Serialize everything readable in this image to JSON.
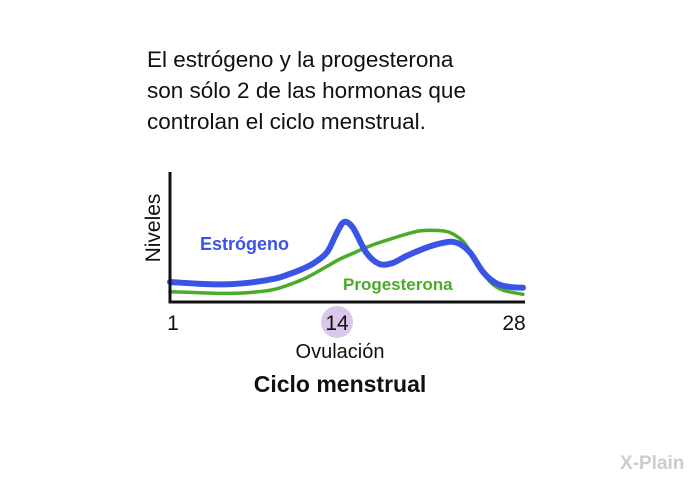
{
  "intro_lines": [
    "El estrógeno y la progesterona",
    "son sólo 2 de las hormonas que",
    "controlan el ciclo menstrual."
  ],
  "chart_data": {
    "type": "line",
    "title": "Ciclo menstrual",
    "xlabel": "Ovulación",
    "ylabel": "Niveles",
    "xlim": [
      1,
      28
    ],
    "ylim": [
      0,
      1
    ],
    "x_ticks": [
      "1",
      "14",
      "28"
    ],
    "highlight_tick": "14",
    "grid": false,
    "legend": "inline labels",
    "series": [
      {
        "name": "Estrógeno",
        "color": "#3a55e6",
        "x": [
          1,
          3,
          5,
          7,
          9,
          10,
          11,
          12,
          13,
          13.7,
          14.3,
          15,
          16,
          17,
          18,
          19,
          20,
          21,
          22,
          22.6,
          23.3,
          24,
          25,
          26,
          27,
          28
        ],
        "y": [
          0.22,
          0.2,
          0.19,
          0.21,
          0.26,
          0.31,
          0.37,
          0.45,
          0.58,
          0.8,
          0.95,
          0.88,
          0.58,
          0.44,
          0.45,
          0.53,
          0.6,
          0.66,
          0.7,
          0.71,
          0.67,
          0.57,
          0.33,
          0.2,
          0.16,
          0.15
        ]
      },
      {
        "name": "Progesterona",
        "color": "#4aaa2a",
        "x": [
          1,
          3,
          5,
          7,
          9,
          11,
          12,
          13,
          14,
          15,
          16,
          17,
          18,
          19,
          20,
          21,
          22,
          22.6,
          23.5,
          24.5,
          25.5,
          26.5,
          28
        ],
        "y": [
          0.1,
          0.09,
          0.08,
          0.09,
          0.13,
          0.24,
          0.32,
          0.41,
          0.5,
          0.57,
          0.64,
          0.7,
          0.75,
          0.8,
          0.84,
          0.85,
          0.84,
          0.81,
          0.7,
          0.45,
          0.22,
          0.12,
          0.07
        ]
      }
    ]
  },
  "footer": {
    "logo_text": "X-Plain"
  },
  "colors": {
    "estrogen": "#3a55e6",
    "progesterone": "#4aaa2a",
    "highlight": "#d9c7ec",
    "axis": "#111111",
    "logo": "#cccccc"
  }
}
